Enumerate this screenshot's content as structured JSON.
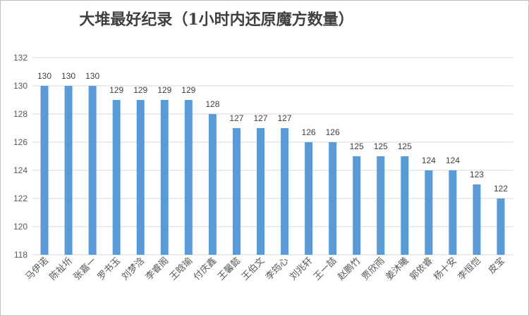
{
  "chart_data": {
    "type": "bar",
    "title": "大堆最好纪录（1小时内还原魔方数量）",
    "xlabel": "",
    "ylabel": "",
    "categories": [
      "马伊诺",
      "陈祉圻",
      "张嘉一",
      "罗书玉",
      "刘梦浛",
      "李睿阁",
      "王晗瑜",
      "付庆鑫",
      "王馨懿",
      "王伯文",
      "李筠心",
      "刘兆轩",
      "王一喆",
      "赵鹏竹",
      "贾欣雨",
      "姜沐曦",
      "郭依睿",
      "杨十安",
      "李恒恺",
      "皮宝"
    ],
    "values": [
      130,
      130,
      130,
      129,
      129,
      129,
      129,
      128,
      127,
      127,
      127,
      126,
      126,
      125,
      125,
      125,
      124,
      124,
      123,
      122
    ],
    "ylim": [
      118,
      132
    ],
    "yticks": [
      118,
      120,
      122,
      124,
      126,
      128,
      130,
      132
    ],
    "grid": true,
    "legend": "none",
    "bar_color": "#5b9bd5",
    "grid_color": "#d9d9d9"
  }
}
